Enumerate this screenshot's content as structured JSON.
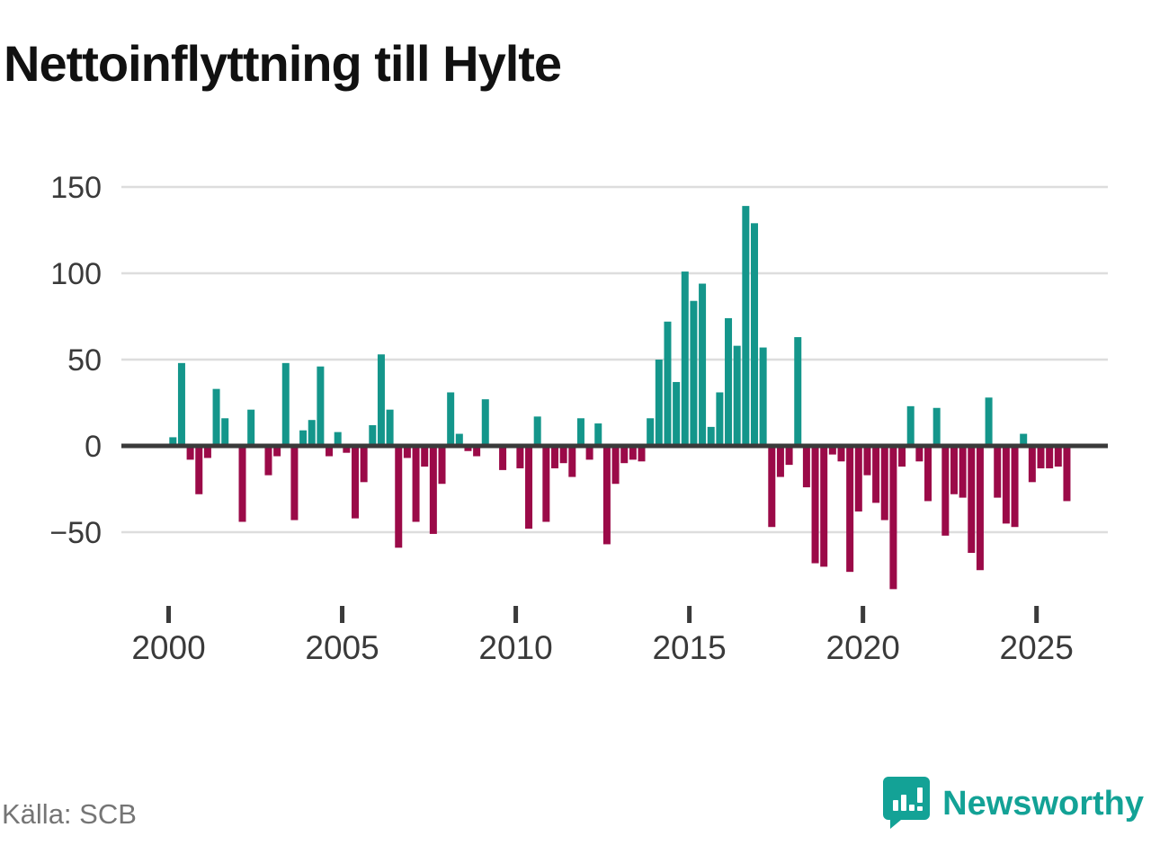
{
  "title": "Nettoinflyttning till Hylte",
  "source": "Källa: SCB",
  "brand": {
    "name": "Newsworthy"
  },
  "colors": {
    "positive": "#14968b",
    "negative": "#9b0a48",
    "axis": "#3a3a3a",
    "grid": "#dddddd",
    "label": "#3a3a3a",
    "source_text": "#757575",
    "brand_teal": "#13a296"
  },
  "chart_data": {
    "type": "bar",
    "frequency": "quarterly",
    "start_year": 2000,
    "x_tick_labels": [
      "2000",
      "2005",
      "2010",
      "2015",
      "2020",
      "2025"
    ],
    "y_ticks": [
      150,
      100,
      50,
      0,
      -50
    ],
    "ylim": [
      -90,
      155
    ],
    "grid": true,
    "values": [
      5,
      48,
      -8,
      -28,
      -7,
      33,
      16,
      0,
      -44,
      21,
      0,
      -17,
      -6,
      48,
      -43,
      9,
      15,
      46,
      -6,
      8,
      -4,
      -42,
      -21,
      12,
      53,
      21,
      -59,
      -7,
      -44,
      -12,
      -51,
      -22,
      31,
      7,
      -3,
      -6,
      27,
      0,
      -14,
      0,
      -13,
      -48,
      17,
      -44,
      -13,
      -10,
      -18,
      16,
      -8,
      13,
      -57,
      -22,
      -10,
      -8,
      -9,
      16,
      50,
      72,
      37,
      101,
      84,
      94,
      11,
      31,
      74,
      58,
      139,
      129,
      57,
      -47,
      -18,
      -11,
      63,
      -24,
      -68,
      -70,
      -5,
      -9,
      -73,
      -38,
      -17,
      -33,
      -43,
      -83,
      -12,
      23,
      -9,
      -32,
      22,
      -52,
      -28,
      -30,
      -62,
      -72,
      28,
      -30,
      -45,
      -47,
      7,
      -21,
      -13,
      -13,
      -12,
      -32
    ]
  }
}
